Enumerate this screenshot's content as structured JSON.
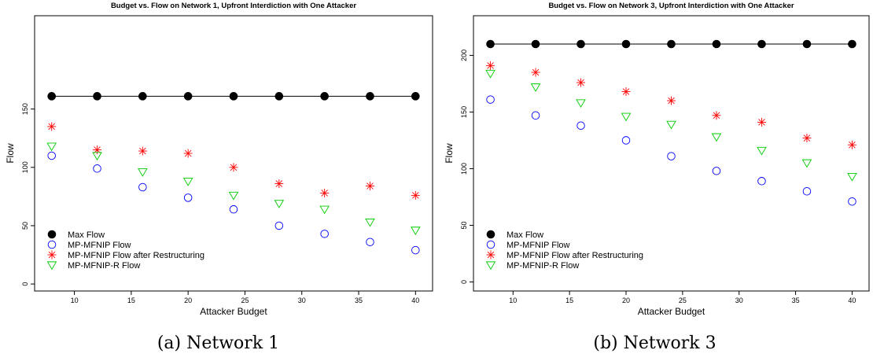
{
  "chart_data": [
    {
      "type": "scatter",
      "title": "Budget vs. Flow on Network 1, Upfront Interdiction with One Attacker",
      "caption": "(a) Network 1",
      "xlabel": "Attacker Budget",
      "ylabel": "Flow",
      "xlim": [
        6.5,
        41.5
      ],
      "ylim": [
        -6,
        230
      ],
      "xticks": [
        10,
        15,
        20,
        25,
        30,
        35,
        40
      ],
      "yticks": [
        0,
        50,
        100,
        150
      ],
      "x": [
        8,
        12,
        16,
        20,
        24,
        28,
        32,
        36,
        40
      ],
      "legend_position": "bottom-left",
      "series": [
        {
          "name": "Max Flow",
          "marker": "filled-circle",
          "color": "#000000",
          "connected": true,
          "values": [
            161,
            161,
            161,
            161,
            161,
            161,
            161,
            161,
            161
          ]
        },
        {
          "name": "MP-MFNIP Flow",
          "marker": "circle",
          "color": "#0000ff",
          "values": [
            110,
            99,
            83,
            74,
            64,
            50,
            43,
            36,
            29
          ]
        },
        {
          "name": "MP-MFNIP Flow after Restructuring",
          "marker": "asterisk",
          "color": "#ff0000",
          "values": [
            135,
            115,
            114,
            112,
            100,
            86,
            78,
            84,
            76
          ]
        },
        {
          "name": "MP-MFNIP-R Flow",
          "marker": "triangle-down",
          "color": "#00cc00",
          "values": [
            118,
            110,
            96,
            88,
            76,
            69,
            64,
            53,
            46
          ]
        }
      ]
    },
    {
      "type": "scatter",
      "title": "Budget vs. Flow on Network 3, Upfront Interdiction with One Attacker",
      "caption": "(b) Network 3",
      "xlabel": "Attacker Budget",
      "ylabel": "Flow",
      "xlim": [
        6.5,
        41.5
      ],
      "ylim": [
        -8,
        235
      ],
      "xticks": [
        10,
        15,
        20,
        25,
        30,
        35,
        40
      ],
      "yticks": [
        0,
        50,
        100,
        150,
        200
      ],
      "x": [
        8,
        12,
        16,
        20,
        24,
        28,
        32,
        36,
        40
      ],
      "legend_position": "bottom-left",
      "series": [
        {
          "name": "Max Flow",
          "marker": "filled-circle",
          "color": "#000000",
          "connected": true,
          "values": [
            210,
            210,
            210,
            210,
            210,
            210,
            210,
            210,
            210
          ]
        },
        {
          "name": "MP-MFNIP Flow",
          "marker": "circle",
          "color": "#0000ff",
          "values": [
            161,
            147,
            138,
            125,
            111,
            98,
            89,
            80,
            71
          ]
        },
        {
          "name": "MP-MFNIP Flow after Restructuring",
          "marker": "asterisk",
          "color": "#ff0000",
          "values": [
            191,
            185,
            176,
            168,
            160,
            147,
            141,
            127,
            121
          ]
        },
        {
          "name": "MP-MFNIP-R Flow",
          "marker": "triangle-down",
          "color": "#00cc00",
          "values": [
            184,
            172,
            158,
            146,
            139,
            128,
            116,
            105,
            93
          ]
        }
      ]
    }
  ]
}
